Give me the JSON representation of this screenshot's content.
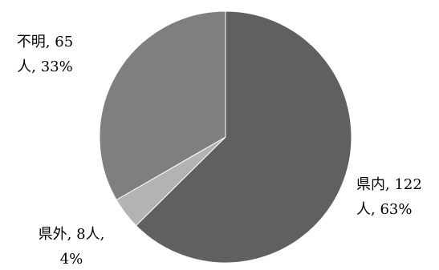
{
  "chart_data": {
    "type": "pie",
    "title": "",
    "slices": [
      {
        "name": "県内",
        "count_label": "122人",
        "value": 122,
        "percent": 63,
        "color": "#606060",
        "label_lines": [
          "県内, 122",
          "人, 63%"
        ]
      },
      {
        "name": "県外",
        "count_label": "8人",
        "value": 8,
        "percent": 4,
        "color": "#b3b3b3",
        "label_lines": [
          "県外, 8人,",
          "4%"
        ]
      },
      {
        "name": "不明",
        "count_label": "65人",
        "value": 65,
        "percent": 33,
        "color": "#7f7f7f",
        "label_lines": [
          "不明, 65",
          "人, 33%"
        ]
      }
    ],
    "start_angle": "12 o'clock",
    "direction": "clockwise",
    "legend": "none",
    "slice_border_color": "#ffffff"
  }
}
